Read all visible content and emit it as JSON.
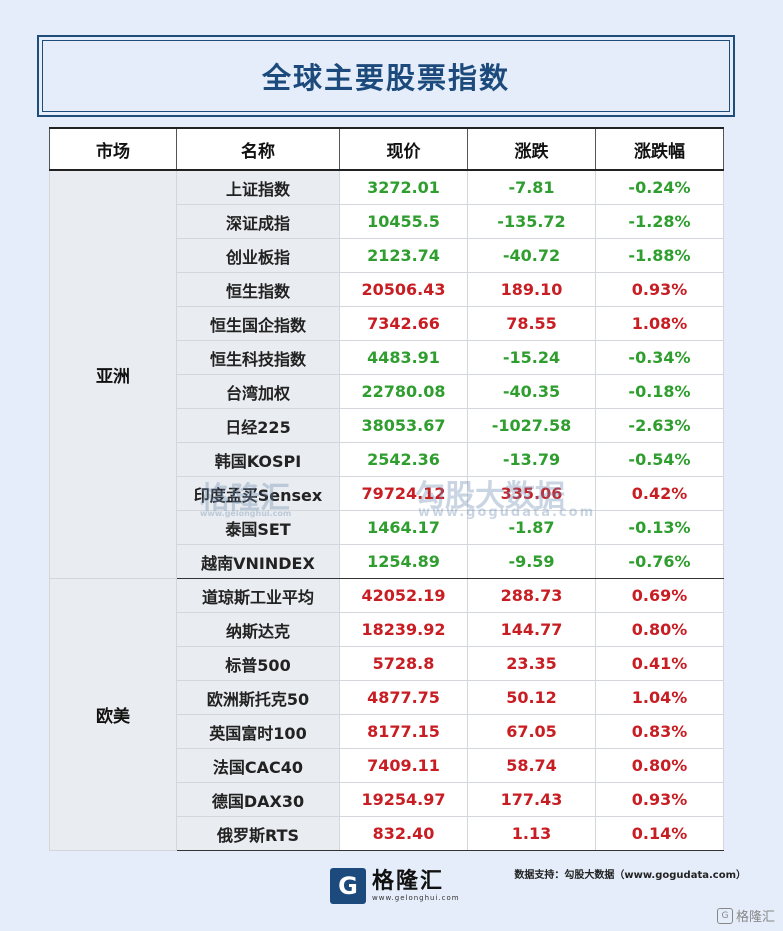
{
  "title": "全球主要股票指数",
  "headers": [
    "市场",
    "名称",
    "现价",
    "涨跌",
    "涨跌幅"
  ],
  "regions": [
    {
      "name": "亚洲",
      "rows": [
        {
          "name": "上证指数",
          "price": "3272.01",
          "change": "-7.81",
          "pct": "-0.24%",
          "dir": "down"
        },
        {
          "name": "深证成指",
          "price": "10455.5",
          "change": "-135.72",
          "pct": "-1.28%",
          "dir": "down"
        },
        {
          "name": "创业板指",
          "price": "2123.74",
          "change": "-40.72",
          "pct": "-1.88%",
          "dir": "down"
        },
        {
          "name": "恒生指数",
          "price": "20506.43",
          "change": "189.10",
          "pct": "0.93%",
          "dir": "up"
        },
        {
          "name": "恒生国企指数",
          "price": "7342.66",
          "change": "78.55",
          "pct": "1.08%",
          "dir": "up"
        },
        {
          "name": "恒生科技指数",
          "price": "4483.91",
          "change": "-15.24",
          "pct": "-0.34%",
          "dir": "down"
        },
        {
          "name": "台湾加权",
          "price": "22780.08",
          "change": "-40.35",
          "pct": "-0.18%",
          "dir": "down"
        },
        {
          "name": "日经225",
          "price": "38053.67",
          "change": "-1027.58",
          "pct": "-2.63%",
          "dir": "down"
        },
        {
          "name": "韩国KOSPI",
          "price": "2542.36",
          "change": "-13.79",
          "pct": "-0.54%",
          "dir": "down"
        },
        {
          "name": "印度孟买Sensex",
          "price": "79724.12",
          "change": "335.06",
          "pct": "0.42%",
          "dir": "up"
        },
        {
          "name": "泰国SET",
          "price": "1464.17",
          "change": "-1.87",
          "pct": "-0.13%",
          "dir": "down"
        },
        {
          "name": "越南VNINDEX",
          "price": "1254.89",
          "change": "-9.59",
          "pct": "-0.76%",
          "dir": "down"
        }
      ]
    },
    {
      "name": "欧美",
      "rows": [
        {
          "name": "道琼斯工业平均",
          "price": "42052.19",
          "change": "288.73",
          "pct": "0.69%",
          "dir": "up"
        },
        {
          "name": "纳斯达克",
          "price": "18239.92",
          "change": "144.77",
          "pct": "0.80%",
          "dir": "up"
        },
        {
          "name": "标普500",
          "price": "5728.8",
          "change": "23.35",
          "pct": "0.41%",
          "dir": "up"
        },
        {
          "name": "欧洲斯托克50",
          "price": "4877.75",
          "change": "50.12",
          "pct": "1.04%",
          "dir": "up"
        },
        {
          "name": "英国富时100",
          "price": "8177.15",
          "change": "67.05",
          "pct": "0.83%",
          "dir": "up"
        },
        {
          "name": "法国CAC40",
          "price": "7409.11",
          "change": "58.74",
          "pct": "0.80%",
          "dir": "up"
        },
        {
          "name": "德国DAX30",
          "price": "19254.97",
          "change": "177.43",
          "pct": "0.93%",
          "dir": "up"
        },
        {
          "name": "俄罗斯RTS",
          "price": "832.40",
          "change": "1.13",
          "pct": "0.14%",
          "dir": "up"
        }
      ]
    }
  ],
  "colors": {
    "up": "#c81e23",
    "down": "#2f9e2f",
    "title": "#1d4a7c",
    "background": "#e4edf9"
  },
  "watermark": {
    "brand": "格隆汇",
    "brand_url": "www.gelonghui.com",
    "data_brand": "勾股大数据",
    "data_url": "www.gogudata.com"
  },
  "footer": {
    "source": "数据支持：勾股大数据（www.gogudata.com）",
    "logo_mark": "G",
    "logo_text": "格隆汇",
    "logo_url": "www.gelonghui.com",
    "corner_text": "格隆汇",
    "logo_icon": "gelonghui-logo-icon"
  }
}
